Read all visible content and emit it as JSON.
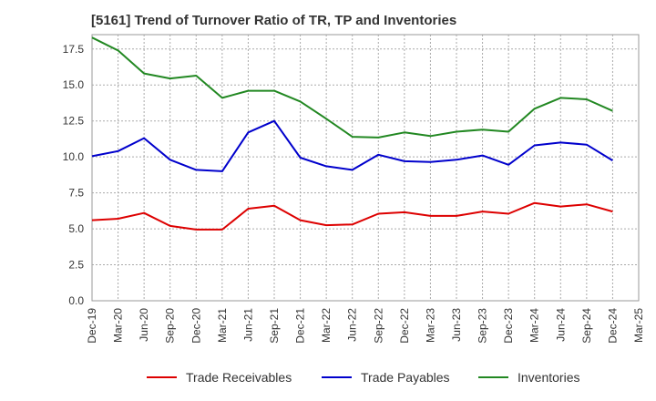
{
  "chart_data": {
    "type": "line",
    "title": "[5161]  Trend of Turnover Ratio of TR, TP and Inventories",
    "xlabel": "",
    "ylabel": "",
    "ylim": [
      0,
      18.5
    ],
    "yticks": [
      "0.0",
      "2.5",
      "5.0",
      "7.5",
      "10.0",
      "12.5",
      "15.0",
      "17.5"
    ],
    "x_tick_labels": [
      "Dec-19",
      "Mar-20",
      "Jun-20",
      "Sep-20",
      "Dec-20",
      "Mar-21",
      "Jun-21",
      "Sep-21",
      "Dec-21",
      "Mar-22",
      "Jun-22",
      "Sep-22",
      "Dec-22",
      "Mar-23",
      "Jun-23",
      "Sep-23",
      "Dec-23",
      "Mar-24",
      "Jun-24",
      "Sep-24",
      "Dec-24",
      "Mar-25"
    ],
    "categories": [
      "Dec-19",
      "Mar-20",
      "Jun-20",
      "Sep-20",
      "Dec-20",
      "Mar-21",
      "Jun-21",
      "Sep-21",
      "Dec-21",
      "Mar-22",
      "Jun-22",
      "Sep-22",
      "Dec-22",
      "Mar-23",
      "Jun-23",
      "Sep-23",
      "Dec-23",
      "Mar-24",
      "Jun-24",
      "Sep-24",
      "Dec-24"
    ],
    "grid": true,
    "legend": "bottom",
    "series": [
      {
        "name": "Trade Receivables",
        "color": "#dd0000",
        "values": [
          5.6,
          5.7,
          6.1,
          5.2,
          4.95,
          4.95,
          6.4,
          6.6,
          5.6,
          5.25,
          5.3,
          6.05,
          6.15,
          5.9,
          5.9,
          6.2,
          6.05,
          6.8,
          6.55,
          6.7,
          6.2
        ]
      },
      {
        "name": "Trade Payables",
        "color": "#0000cc",
        "values": [
          10.05,
          10.4,
          11.3,
          9.8,
          9.1,
          9.0,
          11.7,
          12.5,
          9.95,
          9.35,
          9.1,
          10.15,
          9.7,
          9.65,
          9.8,
          10.1,
          9.45,
          10.8,
          11.0,
          10.85,
          9.75
        ]
      },
      {
        "name": "Inventories",
        "color": "#228822",
        "values": [
          18.3,
          17.4,
          15.8,
          15.45,
          15.65,
          14.1,
          14.6,
          14.6,
          13.85,
          12.65,
          11.4,
          11.35,
          11.7,
          11.45,
          11.75,
          11.9,
          11.75,
          13.35,
          14.1,
          14.0,
          13.2
        ]
      }
    ]
  }
}
